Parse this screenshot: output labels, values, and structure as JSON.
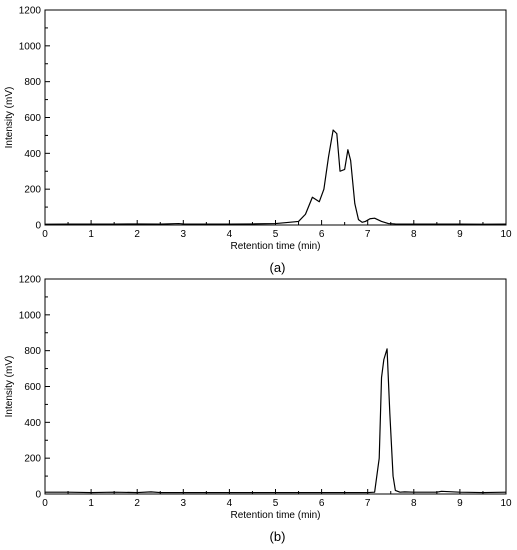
{
  "chart_data": [
    {
      "type": "line",
      "panel_label": "(a)",
      "xlabel": "Retention time (min)",
      "ylabel": "Intensity (mV)",
      "xlim": [
        0,
        10
      ],
      "ylim": [
        0,
        1200
      ],
      "xticks": [
        "0",
        "1",
        "2",
        "3",
        "4",
        "5",
        "6",
        "7",
        "8",
        "9",
        "10"
      ],
      "yticks": [
        "0",
        "200",
        "400",
        "600",
        "800",
        "1000",
        "1200"
      ],
      "grid": false,
      "series": [
        {
          "x": [
            0,
            0.5,
            1,
            1.5,
            2,
            2.5,
            2.9,
            3,
            3.5,
            4,
            4.5,
            5,
            5.3,
            5.5,
            5.65,
            5.8,
            5.95,
            6.05,
            6.15,
            6.25,
            6.33,
            6.4,
            6.5,
            6.57,
            6.63,
            6.72,
            6.8,
            6.88,
            6.95,
            7.05,
            7.15,
            7.3,
            7.45,
            7.6,
            7.8,
            8,
            8.5,
            9,
            9.5,
            10
          ],
          "y": [
            4,
            5,
            5,
            5,
            6,
            5,
            8,
            6,
            5,
            5,
            6,
            8,
            15,
            20,
            60,
            155,
            130,
            200,
            380,
            530,
            510,
            300,
            310,
            420,
            360,
            120,
            30,
            15,
            20,
            35,
            38,
            20,
            8,
            6,
            5,
            5,
            5,
            5,
            4,
            5
          ]
        }
      ]
    },
    {
      "type": "line",
      "panel_label": "(b)",
      "xlabel": "Retention time (min)",
      "ylabel": "Intensity (mV)",
      "xlim": [
        0,
        10
      ],
      "ylim": [
        0,
        1200
      ],
      "xticks": [
        "0",
        "1",
        "2",
        "3",
        "4",
        "5",
        "6",
        "7",
        "8",
        "9",
        "10"
      ],
      "yticks": [
        "0",
        "200",
        "400",
        "600",
        "800",
        "1000",
        "1200"
      ],
      "grid": false,
      "series": [
        {
          "x": [
            0,
            0.5,
            1,
            1.5,
            2,
            2.3,
            2.5,
            3,
            3.5,
            4,
            4.5,
            5,
            5.5,
            6,
            6.5,
            7,
            7.15,
            7.25,
            7.3,
            7.35,
            7.42,
            7.48,
            7.55,
            7.6,
            7.7,
            7.8,
            8,
            8.5,
            8.6,
            9,
            9.5,
            10
          ],
          "y": [
            10,
            10,
            8,
            10,
            8,
            12,
            8,
            8,
            8,
            8,
            8,
            8,
            8,
            8,
            8,
            8,
            10,
            200,
            650,
            750,
            810,
            450,
            100,
            20,
            10,
            12,
            10,
            10,
            15,
            10,
            8,
            10
          ]
        }
      ]
    }
  ]
}
